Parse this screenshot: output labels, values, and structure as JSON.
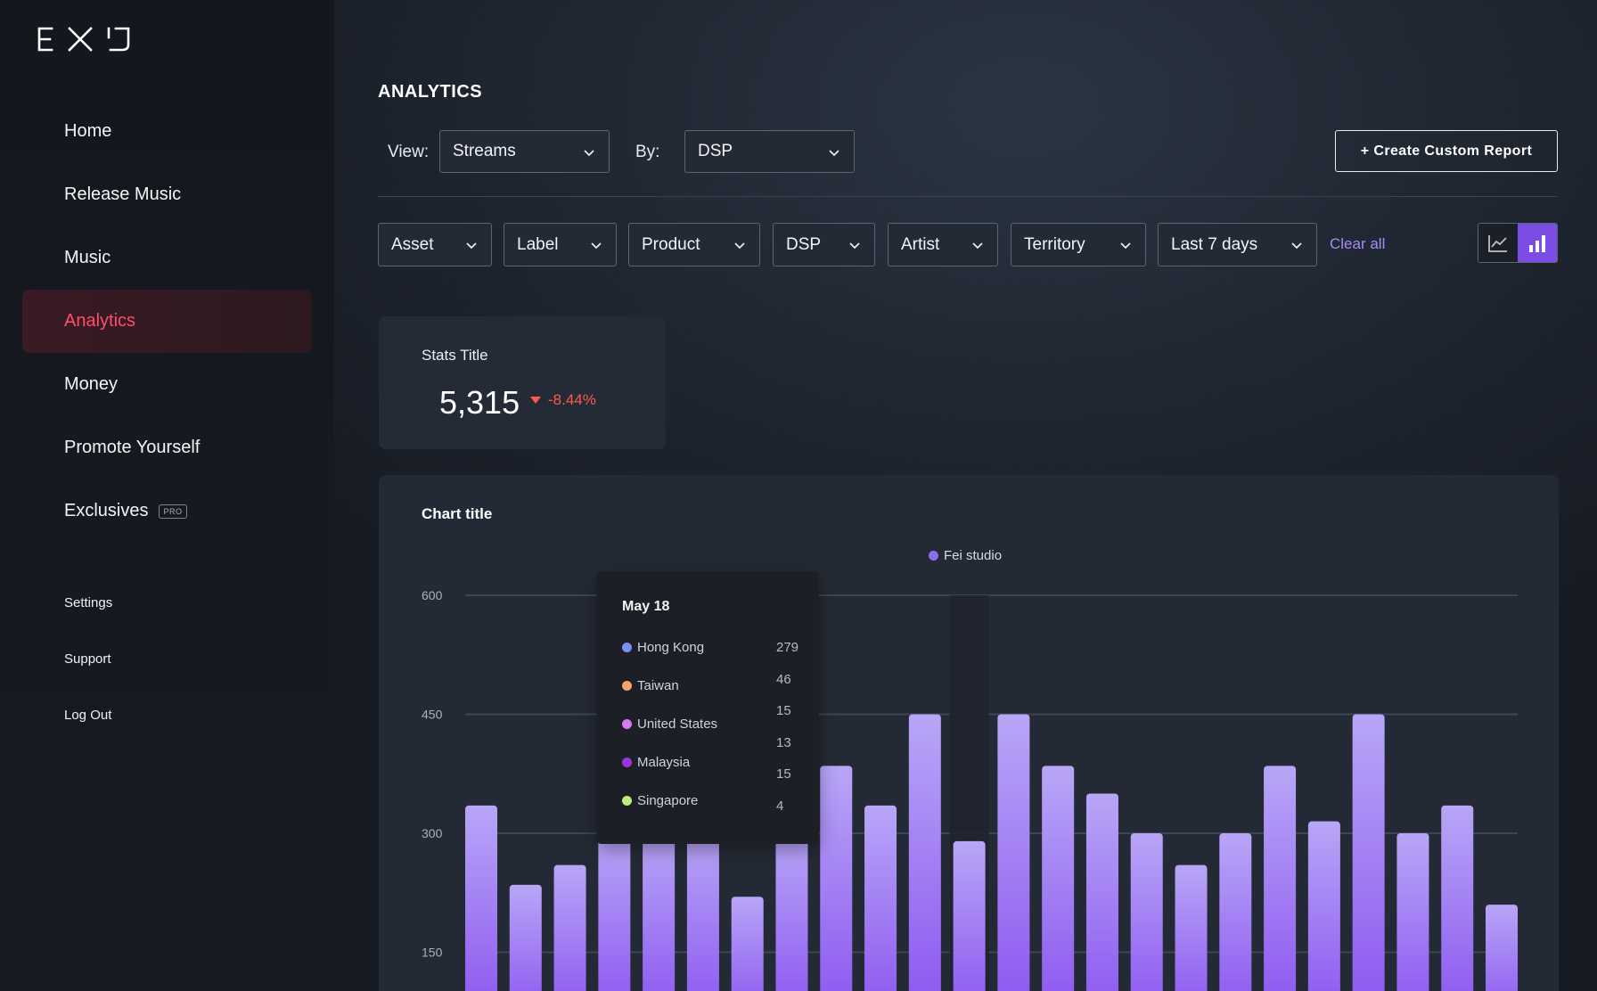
{
  "sidebar": {
    "logo_text": "EXD",
    "items": [
      {
        "label": "Home"
      },
      {
        "label": "Release Music"
      },
      {
        "label": "Music"
      },
      {
        "label": "Analytics",
        "active": true
      },
      {
        "label": "Money"
      },
      {
        "label": "Promote Yourself"
      },
      {
        "label": "Exclusives",
        "badge": "PRO"
      }
    ],
    "secondary": [
      {
        "label": "Settings"
      },
      {
        "label": "Support"
      },
      {
        "label": "Log Out"
      }
    ]
  },
  "header": {
    "title": "ANALYTICS",
    "view_label": "View:",
    "view_value": "Streams",
    "by_label": "By:",
    "by_value": "DSP",
    "create_button": "+ Create Custom Report"
  },
  "filters": {
    "items": [
      {
        "label": "Asset"
      },
      {
        "label": "Label"
      },
      {
        "label": "Product"
      },
      {
        "label": "DSP"
      },
      {
        "label": "Artist"
      },
      {
        "label": "Territory"
      },
      {
        "label": "Last 7 days"
      }
    ],
    "clear_all": "Clear all",
    "chart_toggle": {
      "selected": "bar",
      "options": [
        "line-chart-icon",
        "bar-chart-icon"
      ]
    }
  },
  "stats": {
    "title": "Stats Title",
    "value": "5,315",
    "change": "-8.44%",
    "direction": "down"
  },
  "chart_data": {
    "type": "bar",
    "title": "Chart title",
    "legend": [
      "Fei studio"
    ],
    "legend_placement": "top-center",
    "y_ticks": [
      "600",
      "450",
      "300",
      "150"
    ],
    "ylim": [
      0,
      600
    ],
    "grid": true,
    "series": [
      {
        "name": "Fei studio",
        "color": "#9f74f5",
        "values": [
          335,
          235,
          260,
          300,
          300,
          300,
          220,
          300,
          385,
          335,
          450,
          290,
          450,
          385,
          350,
          300,
          260,
          300,
          385,
          315,
          450,
          300,
          335,
          210
        ]
      }
    ],
    "highlight_index": 11,
    "tooltip": {
      "title": "May 18",
      "rows": [
        {
          "label": "Hong Kong",
          "value": "279",
          "color": "#7b8ff0"
        },
        {
          "label": "Taiwan",
          "value": "46",
          "color": "#f5a36b"
        },
        {
          "label": "United States",
          "value": "15",
          "color": "#d57af0"
        },
        {
          "label": "Malaysia",
          "value": "13",
          "color": "#9a36d8"
        },
        {
          "label": "Singapore",
          "value": "15",
          "color": "#b8f07a"
        }
      ],
      "extra_value": "4"
    }
  }
}
